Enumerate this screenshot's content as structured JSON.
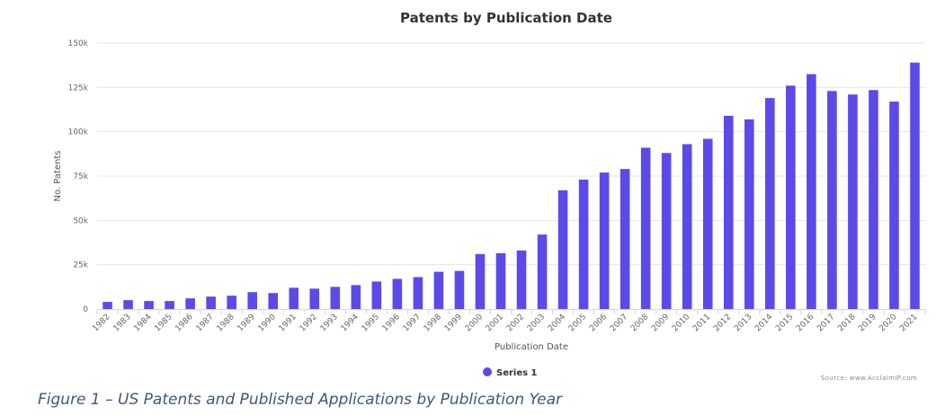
{
  "chart_data": {
    "type": "bar",
    "title": "Patents by Publication Date",
    "xlabel": "Publication Date",
    "ylabel": "No. Patents",
    "ylim": [
      0,
      150000
    ],
    "y_ticks": [
      0,
      25000,
      50000,
      75000,
      100000,
      125000,
      150000
    ],
    "y_tick_labels": [
      "0",
      "25k",
      "50k",
      "75k",
      "100k",
      "125k",
      "150k"
    ],
    "grid": true,
    "legend_position": "bottom-center",
    "categories": [
      "1982",
      "1983",
      "1984",
      "1985",
      "1986",
      "1987",
      "1988",
      "1989",
      "1990",
      "1991",
      "1992",
      "1993",
      "1994",
      "1995",
      "1996",
      "1997",
      "1998",
      "1999",
      "2000",
      "2001",
      "2002",
      "2003",
      "2004",
      "2005",
      "2006",
      "2007",
      "2008",
      "2009",
      "2010",
      "2011",
      "2012",
      "2013",
      "2014",
      "2015",
      "2016",
      "2017",
      "2018",
      "2019",
      "2020",
      "2021"
    ],
    "series": [
      {
        "name": "Series 1",
        "color": "#5b4ae8",
        "values": [
          4000,
          5000,
          4500,
          4500,
          6000,
          7000,
          7500,
          9500,
          9000,
          12000,
          11500,
          12500,
          13500,
          15500,
          17000,
          18000,
          21000,
          21500,
          31000,
          31500,
          33000,
          42000,
          67000,
          73000,
          77000,
          79000,
          91000,
          88000,
          93000,
          96000,
          109000,
          107000,
          119000,
          126000,
          132500,
          123000,
          121000,
          123500,
          117000,
          139000
        ]
      }
    ]
  },
  "source_text": "Source: www.AcclaimIP.com",
  "caption": "Figure 1 – US Patents and Published Applications by Publication Year"
}
